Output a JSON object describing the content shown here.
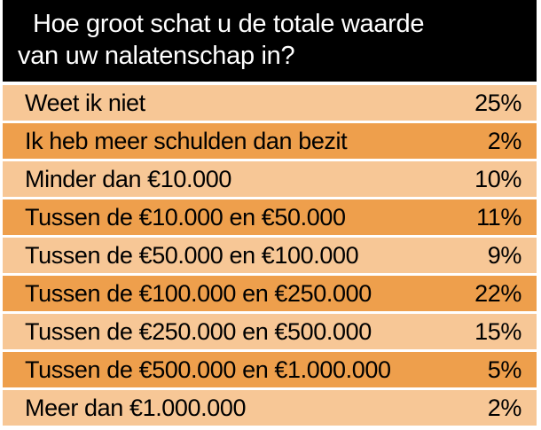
{
  "title_lines": [
    "Hoe groot schat u de totale waarde",
    "van uw nalatenschap in?"
  ],
  "colors": {
    "header_bg": "#000000",
    "header_text": "#ffffff",
    "row_light": "#f7c796",
    "row_dark": "#ee9f4c",
    "text": "#000000"
  },
  "chart_data": {
    "type": "table",
    "title": "Hoe groot schat u de totale waarde van uw nalatenschap in?",
    "categories": [
      "Weet ik niet",
      "Ik heb meer schulden dan bezit",
      "Minder dan €10.000",
      "Tussen de €10.000 en €50.000",
      "Tussen de €50.000 en €100.000",
      "Tussen de €100.000 en €250.000",
      "Tussen de €250.000 en €500.000",
      "Tussen de €500.000 en €1.000.000",
      "Meer dan €1.000.000"
    ],
    "values": [
      25,
      2,
      10,
      11,
      9,
      22,
      15,
      5,
      2
    ],
    "value_labels": [
      "25%",
      "2%",
      "10%",
      "11%",
      "9%",
      "22%",
      "15%",
      "5%",
      "2%"
    ]
  }
}
